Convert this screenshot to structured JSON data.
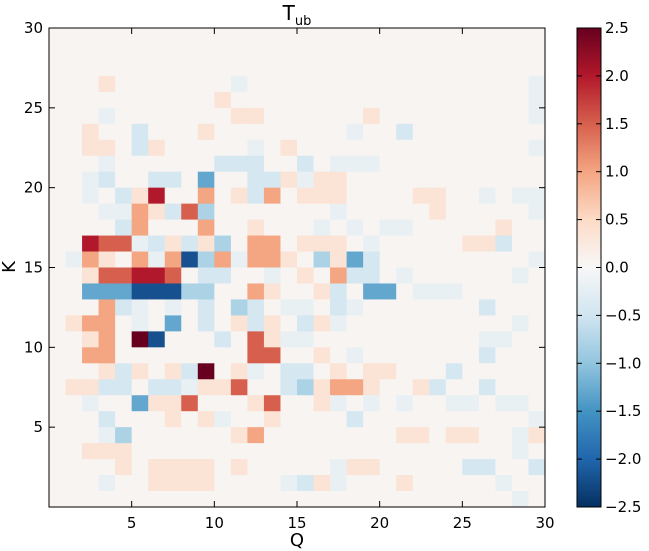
{
  "chart_data": {
    "type": "heatmap",
    "title": "T",
    "title_subscript": "ub",
    "xlabel": "Q",
    "ylabel": "K",
    "xlim": [
      0,
      30
    ],
    "ylim": [
      0,
      30
    ],
    "x_ticks": [
      "5",
      "10",
      "15",
      "20",
      "25",
      "30"
    ],
    "y_ticks": [
      "5",
      "10",
      "15",
      "20",
      "25",
      "30"
    ],
    "colorbar": {
      "range": [
        -2.5,
        2.5
      ],
      "ticks": [
        "2.5",
        "2.0",
        "1.5",
        "1.0",
        "0.5",
        "0.0",
        "−0.5",
        "−1.0",
        "−1.5",
        "−2.0",
        "−2.5"
      ],
      "colormap": [
        "#67001f",
        "#b2182b",
        "#d6604d",
        "#f4a582",
        "#fddbc7",
        "#f7f7f7",
        "#d1e5f0",
        "#92c5de",
        "#4393c3",
        "#2166ac",
        "#053061"
      ]
    },
    "grid": false,
    "rows": [
      "000000000000000000000000000000",
      "000000000000000000000000000000",
      "000000000000000000000000000000",
      "00010000000f00000000000000000f",
      "00000000001000000000000000000f",
      "000f0000000110000001000000000f",
      "00100e000100000000f00e00000000",
      "00110e100000f0100000000000000f",
      "000f000000eee00e0fff0000000000",
      "00fe00ee0c00ee1f11000000000000",
      "00f0e1400201e2011100001100f0ff",
      "000ff21e3d0000000f00000100000f",
      "0000e20002001000f0f0ff00000100",
      "00433fe1e1d02201110f0000011e00",
      "0f2102f2bd2f2210d1ce000000000f",
      "001334430ee00f0102ee0f000000f0",
      "00cccbbbdd0021001e0cc0fff00000",
      "0002ef0f0e0de0ff0ef0000000e000",
      "01220f0c0e01e10e1f0000000000f0",
      "001209b000e031ff0000000000ff00",
      "002200000000330010f0000000e000",
      "0001e101e501f0ee01011000e00000",
      "011ee0eef11300ed1221001e00e000",
      "00f00c11300013001f0f0f00ff0ff0",
      "000e000101f0010000e0000000000f",
      "000fd00000012000000001101100f1",
      "0011100000000000000000000000f0",
      "00001011110100000f1100000ee00e",
      "000f0011110000fe1f000100000f00",
      "0000000000000000000000000000f0"
    ]
  }
}
